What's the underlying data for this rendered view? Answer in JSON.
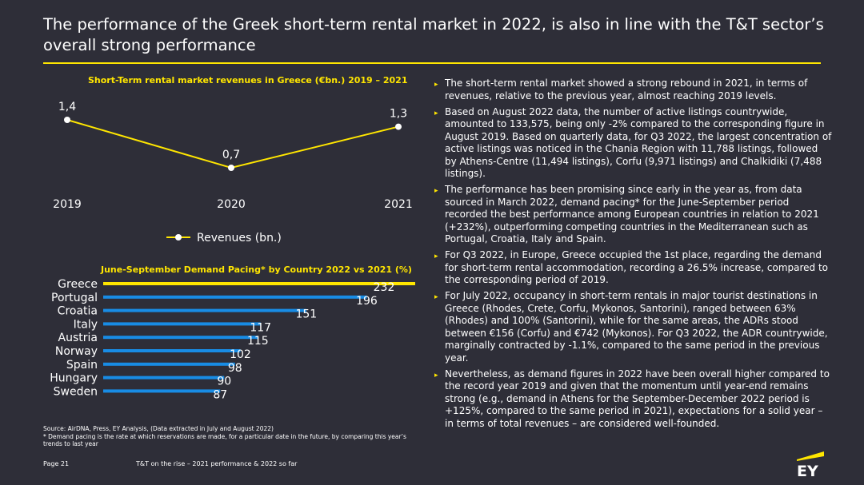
{
  "title": "The performance of the Greek short-term rental market in 2022, is also in line with the T&T sector’s overall strong performance",
  "chart_data": [
    {
      "type": "line",
      "title": "Short-Term rental market revenues in Greece (€bn.) 2019 – 2021",
      "categories": [
        "2019",
        "2020",
        "2021"
      ],
      "series": [
        {
          "name": "Revenues (bn.)",
          "values": [
            1.4,
            0.7,
            1.3
          ],
          "labels": [
            "1,4",
            "0,7",
            "1,3"
          ]
        }
      ],
      "legend": "bottom",
      "color": "#ffe600"
    },
    {
      "type": "bar",
      "orientation": "horizontal",
      "title": "June-September Demand Pacing* by Country 2022 vs 2021 (%)",
      "categories": [
        "Greece",
        "Portugal",
        "Croatia",
        "Italy",
        "Austria",
        "Norway",
        "Spain",
        "Hungary",
        "Sweden"
      ],
      "values": [
        232,
        196,
        151,
        117,
        115,
        102,
        98,
        90,
        87
      ],
      "colors": [
        "#ffe600",
        "#188ce5",
        "#188ce5",
        "#188ce5",
        "#188ce5",
        "#188ce5",
        "#188ce5",
        "#188ce5",
        "#188ce5"
      ]
    }
  ],
  "bullets": [
    "The short-term rental market showed a strong rebound in 2021, in terms of revenues, relative to the previous year, almost reaching 2019 levels.",
    "Based on August 2022 data, the number of active listings countrywide, amounted to 133,575, being only -2% compared to the corresponding figure in August 2019. Based on quarterly data, for Q3 2022, the largest concentration of active listings was noticed in the Chania Region with 11,788 listings, followed by Athens-Centre (11,494 listings), Corfu (9,971 listings) and Chalkidiki (7,488 listings).",
    "The performance has been promising since early in the year as, from data sourced in March 2022, demand pacing* for the June-September period recorded the best performance among European countries in relation to 2021 (+232%), outperforming competing countries in the Mediterranean such as Portugal, Croatia, Italy and Spain.",
    "For Q3 2022, in Europe, Greece occupied the 1st place, regarding the demand for short-term rental accommodation, recording a 26.5% increase, compared to the corresponding period of 2019.",
    "For July 2022, occupancy in short-term rentals in major tourist destinations in Greece (Rhodes, Crete, Corfu, Mykonos, Santorini), ranged between 63% (Rhodes) and 100% (Santorini), while for the same areas, the ADRs stood between €156 (Corfu) and €742 (Mykonos). For Q3 2022, the ADR countrywide, marginally contracted by -1.1%, compared to the same period in the previous year.",
    "Nevertheless, as demand figures in 2022 have been overall higher compared to the record year 2019 and given that the momentum until year-end remains strong (e.g., demand in Athens for the September-December 2022 period is +125%, compared to the same period in 2021), expectations for a solid year – in terms of total revenues – are considered well-founded."
  ],
  "source": "Source: AirDNA, Press, EY Analysis, (Data extracted in July and August 2022)",
  "footnote": "* Demand pacing is the rate at which reservations are made, for a particular date in the future, by comparing this year’s trends to last year",
  "page": "Page 21",
  "footer": "T&T on the rise – 2021 performance & 2022 so far",
  "logo_text": "EY",
  "colors": {
    "background": "#2e2e38",
    "accent": "#ffe600",
    "bar": "#188ce5"
  }
}
